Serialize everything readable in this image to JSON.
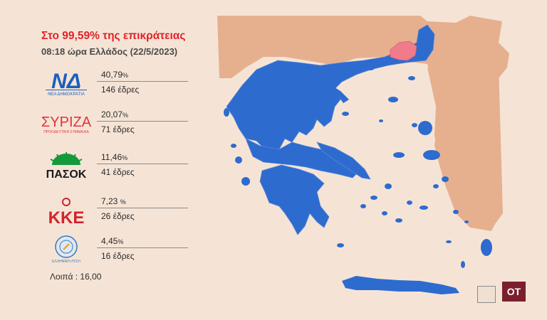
{
  "header": {
    "title": "Στο 99,59% της επικράτειας",
    "subtitle": "08:18 ώρα Ελλάδος (22/5/2023)"
  },
  "parties": [
    {
      "name": "ΝΕΑ ΔΗΜΟΚΡΑΤΙΑ",
      "logo_text": "ΝΔ",
      "percent": "40,79",
      "percent_unit": "%",
      "seats": "146 έδρες",
      "color": "#1b5fbf"
    },
    {
      "name": "ΣΥΡΙΖΑ",
      "logo_text": "ΣΥΡΙΖΑ",
      "logo_sub": "ΠΡΟΟΔΕΥΤΙΚΗ ΣΥΜΜΑΧΙΑ",
      "percent": "20,07",
      "percent_unit": "%",
      "seats": "71 έδρες",
      "color": "#e3323b"
    },
    {
      "name": "ΠΑΣΟΚ",
      "logo_text": "ΠΑΣΟΚ",
      "percent": "11,46",
      "percent_unit": "%",
      "seats": "41 έδρες",
      "color": "#159a3b"
    },
    {
      "name": "ΚΚΕ",
      "logo_text": "ΚΚΕ",
      "percent": "7,23 ",
      "percent_unit": "%",
      "seats": "26 έδρες",
      "color": "#d3232a"
    },
    {
      "name": "ΕΛΛΗΝΙΚΗ ΛΥΣΗ",
      "logo_text": "ΕΛΛΗΝΙΚΗ ΛΥΣΗ",
      "percent": "4,45",
      "percent_unit": "%",
      "seats": "16 έδρες",
      "color": "#3a78b5"
    }
  ],
  "others": "Λοιπά : 16,00",
  "brand": "OT",
  "colors": {
    "background": "#f5e4d6",
    "neighbors": "#e6b08e",
    "nd_blue": "#2d6bcf",
    "syriza_pink": "#f07b8a",
    "sea_land_border": "#6b8fcf"
  }
}
